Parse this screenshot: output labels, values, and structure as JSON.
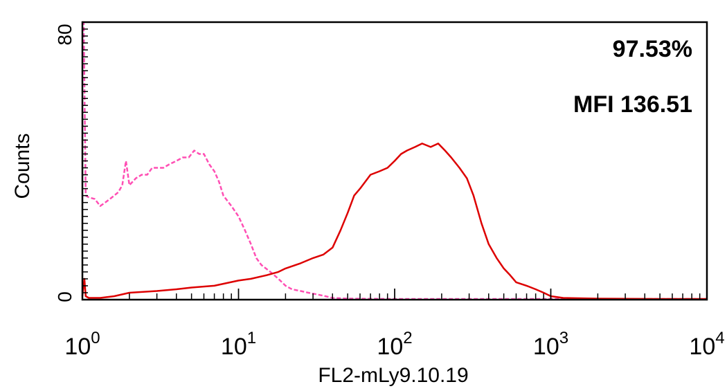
{
  "chart_data": {
    "type": "line",
    "xlabel": "FL2-mLy9.10.19",
    "ylabel": "Counts",
    "xscale": "log",
    "xlim": [
      1,
      10000
    ],
    "ylim": [
      0,
      80
    ],
    "grid": false,
    "x_ticks": [
      {
        "base": "10",
        "exp": "0",
        "value": 1
      },
      {
        "base": "10",
        "exp": "1",
        "value": 10
      },
      {
        "base": "10",
        "exp": "2",
        "value": 100
      },
      {
        "base": "10",
        "exp": "3",
        "value": 1000
      },
      {
        "base": "10",
        "exp": "4",
        "value": 10000
      }
    ],
    "y_ticks": [
      {
        "label": "0",
        "value": 0
      },
      {
        "label": "80",
        "value": 80
      }
    ],
    "annotations": [
      {
        "id": "percent",
        "text": "97.53%"
      },
      {
        "id": "mfi",
        "text": "MFI 136.51"
      }
    ],
    "colors": {
      "control": "#ff4fb4",
      "sample": "#dd0000",
      "axis": "#000000"
    },
    "series": [
      {
        "id": "control",
        "style": "dashed",
        "x": [
          1.0,
          1.02,
          1.05,
          1.1,
          1.2,
          1.3,
          1.4,
          1.5,
          1.6,
          1.7,
          1.8,
          1.9,
          2.0,
          2.2,
          2.4,
          2.6,
          2.8,
          3.0,
          3.3,
          3.6,
          4.0,
          4.4,
          4.8,
          5.2,
          5.6,
          6.0,
          6.5,
          7.0,
          7.5,
          8.0,
          9.0,
          10.0,
          11.0,
          12.0,
          13.0,
          14.0,
          16.0,
          18.0,
          20.0,
          22.0,
          25.0,
          28.0,
          32.0,
          36.0,
          40.0,
          50.0,
          100.0,
          1000.0,
          10000.0
        ],
        "y": [
          80,
          80,
          30,
          29.5,
          29,
          27,
          28,
          29,
          30,
          31,
          33,
          40,
          33,
          35,
          36,
          36,
          38,
          38,
          38,
          39,
          40,
          41,
          41,
          43,
          42,
          42,
          39,
          37,
          34,
          30,
          27,
          24,
          20,
          16,
          12,
          10,
          8,
          6,
          4,
          3,
          2.5,
          2,
          1.5,
          1,
          0.5,
          0.3,
          0.2,
          0.2,
          0.2
        ]
      },
      {
        "id": "sample",
        "style": "solid",
        "x": [
          1.0,
          1.03,
          1.05,
          1.1,
          1.3,
          1.6,
          2.0,
          3.0,
          4.0,
          5.0,
          7.0,
          10.0,
          12.0,
          15.0,
          18.0,
          20.0,
          25.0,
          30.0,
          35.0,
          40.0,
          45.0,
          50.0,
          55.0,
          60.0,
          70.0,
          80.0,
          90.0,
          100.0,
          110.0,
          120.0,
          135.0,
          150.0,
          170.0,
          190.0,
          210.0,
          230.0,
          260.0,
          290.0,
          320.0,
          360.0,
          400.0,
          450.0,
          500.0,
          550.0,
          600.0,
          700.0,
          800.0,
          900.0,
          1000.0,
          1200.0,
          2000.0,
          5000.0,
          10000.0
        ],
        "y": [
          1,
          6,
          1,
          0.5,
          0.5,
          1,
          2,
          2.5,
          3,
          3.5,
          4,
          5.5,
          6,
          7,
          8,
          9,
          10.5,
          12,
          13,
          15,
          20,
          25,
          30,
          32,
          36,
          37,
          38,
          40,
          42,
          43,
          44,
          45,
          44,
          45,
          43,
          41,
          38,
          35,
          30,
          22,
          16,
          12,
          9,
          7,
          5,
          4,
          3,
          2,
          1,
          0.5,
          0.3,
          0.2,
          0.2
        ]
      }
    ]
  }
}
